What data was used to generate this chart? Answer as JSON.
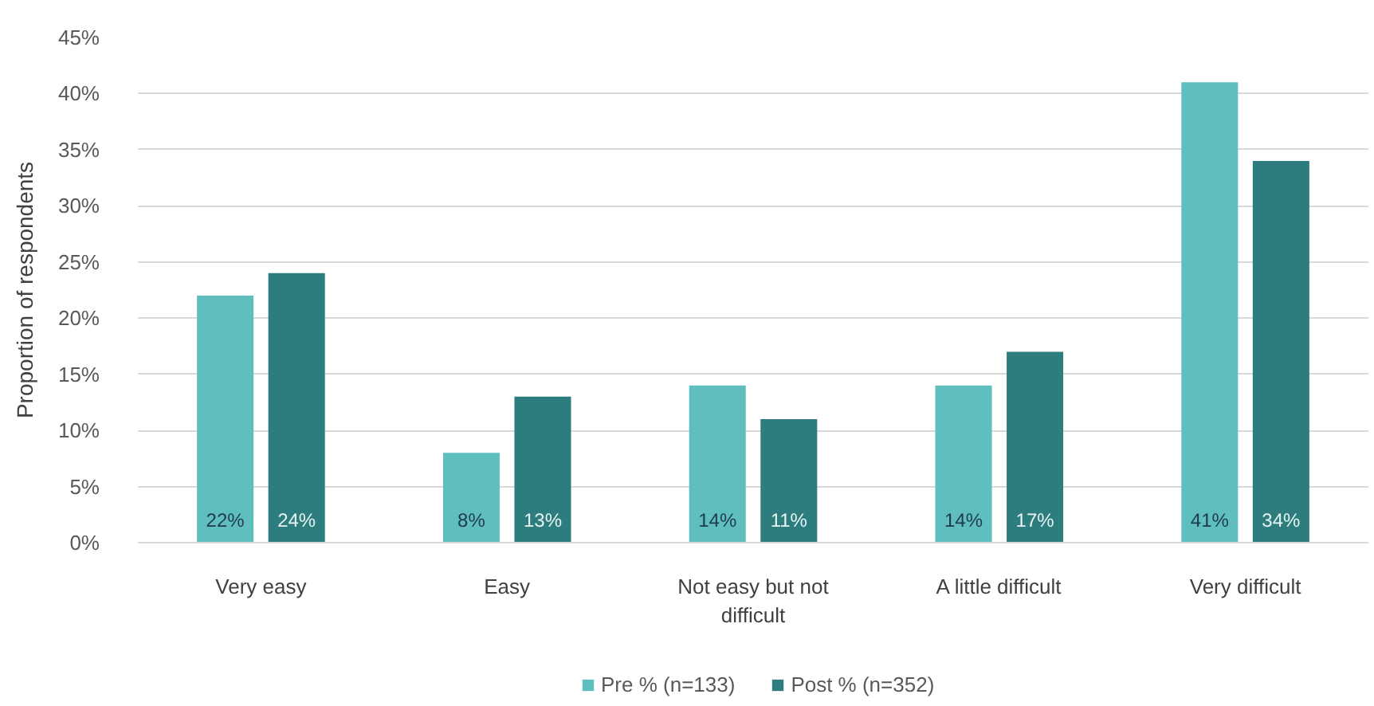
{
  "chart_data": {
    "type": "bar",
    "ylabel": "Proportion of respondents",
    "categories": [
      "Very easy",
      "Easy",
      "Not easy but not difficult",
      "A little difficult",
      "Very difficult"
    ],
    "series": [
      {
        "name": "Pre % (n=133)",
        "color": "#5fbfbf",
        "values": [
          22,
          8,
          14,
          14,
          41
        ],
        "value_labels": [
          "22%",
          "8%",
          "14%",
          "14%",
          "41%"
        ]
      },
      {
        "name": "Post % (n=352)",
        "color": "#2d7c7e",
        "values": [
          24,
          13,
          11,
          17,
          34
        ],
        "value_labels": [
          "24%",
          "13%",
          "11%",
          "17%",
          "34%"
        ]
      }
    ],
    "ylim": [
      0,
      45
    ],
    "yticks": [
      {
        "value": 0,
        "label": "0%"
      },
      {
        "value": 5,
        "label": "5%"
      },
      {
        "value": 10,
        "label": "10%"
      },
      {
        "value": 15,
        "label": "15%"
      },
      {
        "value": 20,
        "label": "20%"
      },
      {
        "value": 25,
        "label": "25%"
      },
      {
        "value": 30,
        "label": "30%"
      },
      {
        "value": 35,
        "label": "35%"
      },
      {
        "value": 40,
        "label": "40%"
      },
      {
        "value": 45,
        "label": "45%"
      }
    ],
    "grid": "y",
    "legend": "bottom"
  }
}
